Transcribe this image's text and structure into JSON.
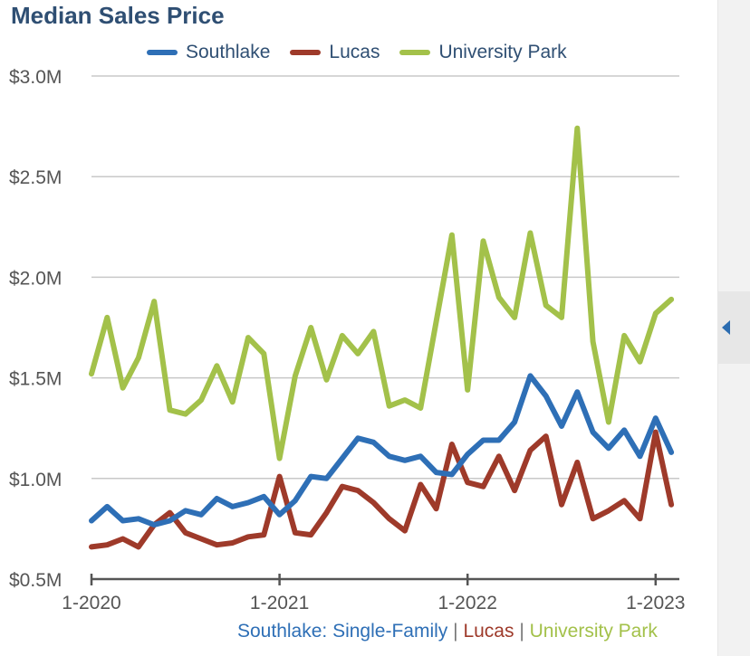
{
  "chart_data": {
    "type": "line",
    "title": "Median Sales Price",
    "x_ticks": [
      "1-2020",
      "1-2021",
      "1-2022",
      "1-2023"
    ],
    "y_ticks": [
      "$0.5M",
      "$1.0M",
      "$1.5M",
      "$2.0M",
      "$2.5M",
      "$3.0M"
    ],
    "y_tick_values": [
      0.5,
      1.0,
      1.5,
      2.0,
      2.5,
      3.0
    ],
    "ylim": [
      0.5,
      3.0
    ],
    "x_start": "2020-01",
    "x_end": "2023-02",
    "grid": true,
    "legend_position": "top",
    "series": [
      {
        "name": "Southlake",
        "color": "#2e6fb6",
        "values": [
          0.79,
          0.86,
          0.79,
          0.8,
          0.77,
          0.79,
          0.84,
          0.82,
          0.9,
          0.86,
          0.88,
          0.91,
          0.82,
          0.89,
          1.01,
          1.0,
          1.1,
          1.2,
          1.18,
          1.11,
          1.09,
          1.11,
          1.03,
          1.02,
          1.12,
          1.19,
          1.19,
          1.28,
          1.51,
          1.41,
          1.26,
          1.43,
          1.23,
          1.15,
          1.24,
          1.11,
          1.3,
          1.13
        ]
      },
      {
        "name": "Lucas",
        "color": "#9e3a2a",
        "values": [
          0.66,
          0.67,
          0.7,
          0.66,
          0.77,
          0.83,
          0.73,
          0.7,
          0.67,
          0.68,
          0.71,
          0.72,
          1.01,
          0.73,
          0.72,
          0.83,
          0.96,
          0.94,
          0.88,
          0.8,
          0.74,
          0.97,
          0.85,
          1.17,
          0.98,
          0.96,
          1.11,
          0.94,
          1.14,
          1.21,
          0.87,
          1.08,
          0.8,
          0.84,
          0.89,
          0.8,
          1.23,
          0.87
        ]
      },
      {
        "name": "University Park",
        "color": "#a3c14a",
        "values": [
          1.52,
          1.8,
          1.45,
          1.6,
          1.88,
          1.34,
          1.32,
          1.39,
          1.56,
          1.38,
          1.7,
          1.62,
          1.1,
          1.51,
          1.75,
          1.49,
          1.71,
          1.62,
          1.73,
          1.36,
          1.39,
          1.35,
          1.78,
          2.21,
          1.44,
          2.18,
          1.9,
          1.8,
          2.22,
          1.86,
          1.8,
          2.74,
          1.68,
          1.28,
          1.71,
          1.58,
          1.82,
          1.89
        ]
      }
    ]
  },
  "footer": {
    "series_1": "Southlake: Single-Family",
    "series_2": "Lucas",
    "series_3": "University Park",
    "separator": "|",
    "color_1": "#2e6fb6",
    "color_2": "#9e3a2a",
    "color_3": "#a3c14a"
  },
  "side_panel": {
    "icon": "chevron-left-icon",
    "accent": "#2b6cb0"
  }
}
